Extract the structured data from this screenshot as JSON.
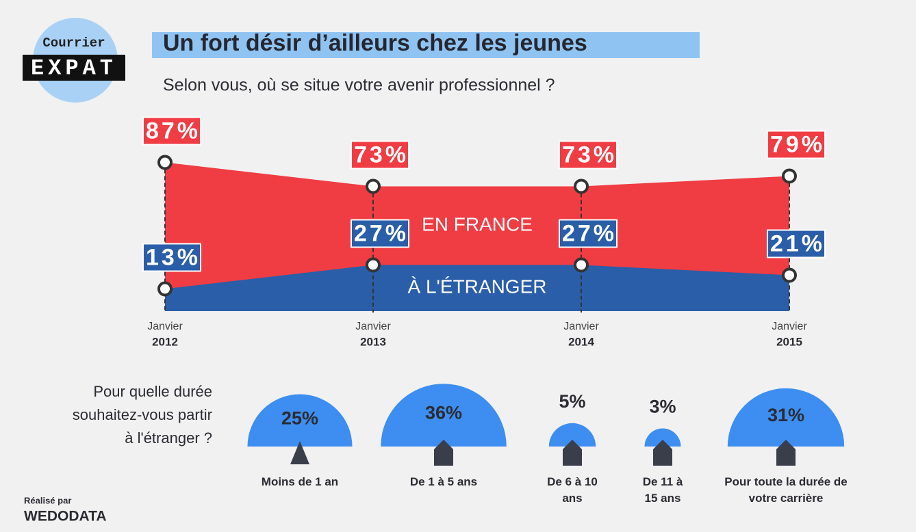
{
  "logo": {
    "top": "Courrier",
    "bottom": "EXPAT"
  },
  "credit": {
    "label": "Réalisé par",
    "name": "WEDODATA"
  },
  "chart_data": [
    {
      "type": "area",
      "title": "Un fort désir d’ailleurs chez les jeunes",
      "subtitle": "Selon vous, où se situe votre avenir professionnel ?",
      "categories": [
        "Janvier",
        "Janvier",
        "Janvier",
        "Janvier"
      ],
      "years": [
        "2012",
        "2013",
        "2014",
        "2015"
      ],
      "ylim": [
        0,
        100
      ],
      "series": [
        {
          "name": "EN FRANCE",
          "color": "#f03c43",
          "values": [
            87,
            73,
            73,
            79
          ],
          "value_labels": [
            "87%",
            "73%",
            "73%",
            "79%"
          ]
        },
        {
          "name": "À L'ÉTRANGER",
          "color": "#2a5ea8",
          "values": [
            13,
            27,
            27,
            21
          ],
          "value_labels": [
            "13%",
            "27%",
            "27%",
            "21%"
          ]
        }
      ]
    },
    {
      "type": "semicircle",
      "title": "Pour quelle durée souhaitez-vous partir à l'étranger ?",
      "categories": [
        "Moins de 1 an",
        "De 1 à 5 ans",
        "De 6 à 10 ans",
        "De 11 à 15 ans",
        "Pour toute la durée de votre carrière"
      ],
      "values": [
        25,
        36,
        5,
        3,
        31
      ],
      "value_labels": [
        "25%",
        "36%",
        "5%",
        "3%",
        "31%"
      ],
      "color": "#3d8ef0"
    }
  ]
}
